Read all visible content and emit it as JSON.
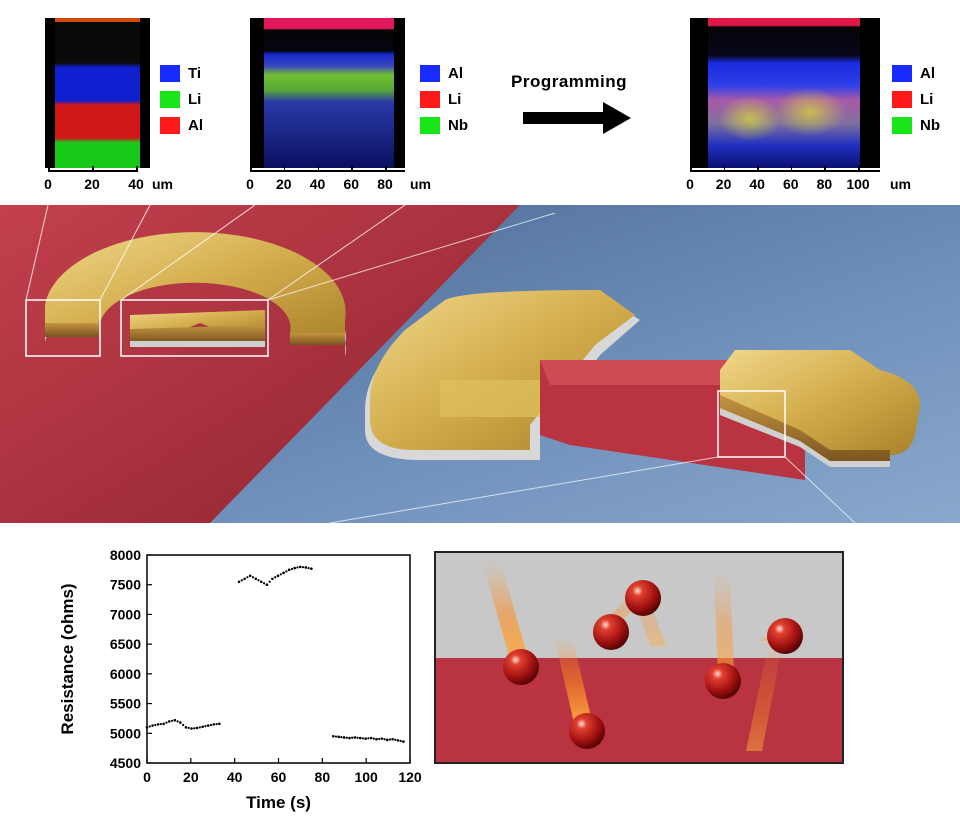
{
  "panels": [
    {
      "id": "map1",
      "legend": [
        {
          "label": "Ti",
          "color": "#1a2bff"
        },
        {
          "label": "Li",
          "color": "#19e619"
        },
        {
          "label": "Al",
          "color": "#ff1a1a"
        }
      ],
      "ticks": [
        "0",
        "20",
        "40"
      ],
      "unit": "um"
    },
    {
      "id": "map2",
      "legend": [
        {
          "label": "Al",
          "color": "#1a2bff"
        },
        {
          "label": "Li",
          "color": "#ff1a1a"
        },
        {
          "label": "Nb",
          "color": "#19e619"
        }
      ],
      "ticks": [
        "0",
        "20",
        "40",
        "60",
        "80"
      ],
      "unit": "um"
    },
    {
      "id": "map3",
      "legend": [
        {
          "label": "Al",
          "color": "#1a2bff"
        },
        {
          "label": "Li",
          "color": "#ff1a1a"
        },
        {
          "label": "Nb",
          "color": "#19e619"
        }
      ],
      "ticks": [
        "0",
        "20",
        "40",
        "60",
        "80",
        "100"
      ],
      "unit": "um"
    }
  ],
  "arrow_label": "Programming",
  "colors": {
    "red_substrate": "#b8333f",
    "blue_substrate": "#5a7ba8",
    "gold": "#d8b552",
    "gray_layer": "#c9c9c9"
  },
  "chart_data": {
    "type": "scatter",
    "xlabel": "Time  (s)",
    "ylabel": "Resistance (ohms)",
    "xlim": [
      0,
      120
    ],
    "ylim": [
      4500,
      8000
    ],
    "xticks": [
      "0",
      "20",
      "40",
      "60",
      "80",
      "100",
      "120"
    ],
    "yticks": [
      "4500",
      "5000",
      "5500",
      "6000",
      "6500",
      "7000",
      "7500",
      "8000"
    ],
    "segments": [
      {
        "x_start": 0,
        "x_end": 33,
        "y_values": [
          5100,
          5130,
          5150,
          5160,
          5200,
          5220,
          5180,
          5100,
          5080,
          5090,
          5110,
          5130,
          5150,
          5160
        ]
      },
      {
        "x_start": 42,
        "x_end": 75,
        "y_values": [
          7550,
          7600,
          7650,
          7600,
          7550,
          7500,
          7600,
          7650,
          7700,
          7750,
          7780,
          7800,
          7790,
          7770
        ]
      },
      {
        "x_start": 85,
        "x_end": 117,
        "y_values": [
          4950,
          4940,
          4930,
          4920,
          4930,
          4920,
          4910,
          4920,
          4900,
          4910,
          4890,
          4900,
          4880,
          4860
        ]
      }
    ]
  }
}
